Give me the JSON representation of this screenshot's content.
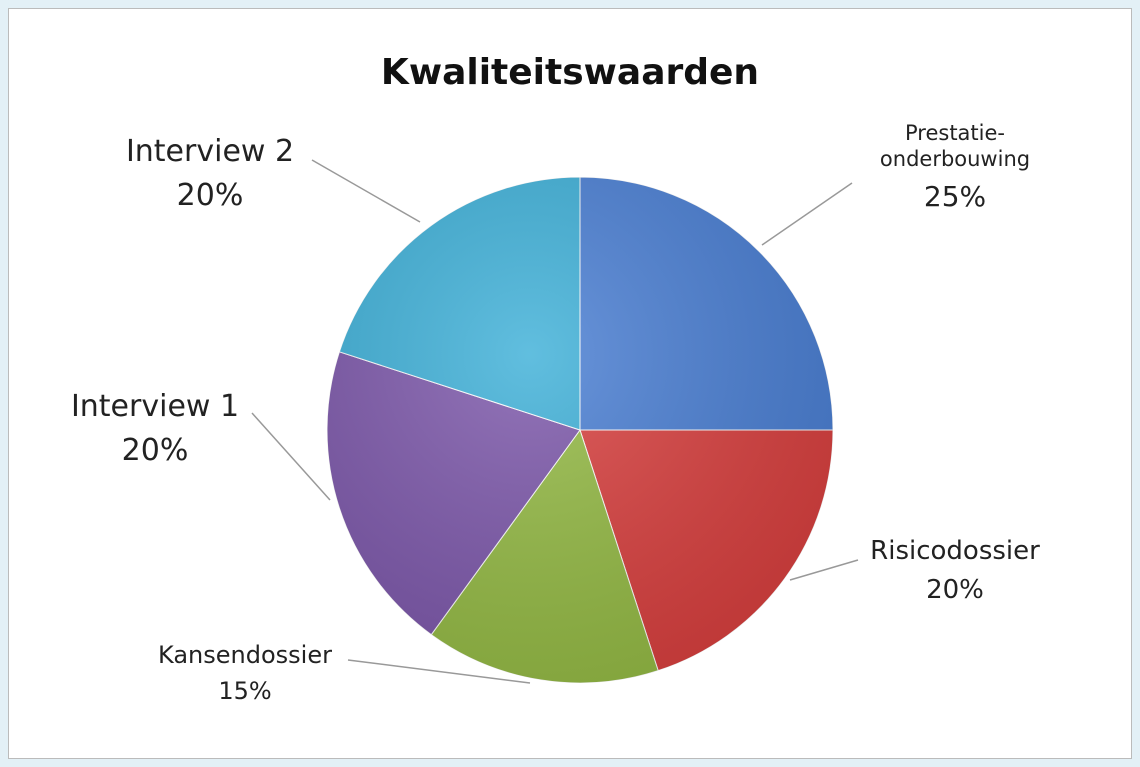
{
  "chart_data": {
    "type": "pie",
    "title": "Kwaliteitswaarden",
    "categories": [
      "Prestatie-onderbouwing",
      "Risicodossier",
      "Kansendossier",
      "Interview 1",
      "Interview 2"
    ],
    "values": [
      25,
      20,
      15,
      20,
      20
    ],
    "value_labels": [
      "25%",
      "20%",
      "15%",
      "20%",
      "20%"
    ],
    "colors": [
      "#4a7fd4",
      "#d9403f",
      "#95bb45",
      "#7d58ab",
      "#3eb0d8"
    ]
  }
}
